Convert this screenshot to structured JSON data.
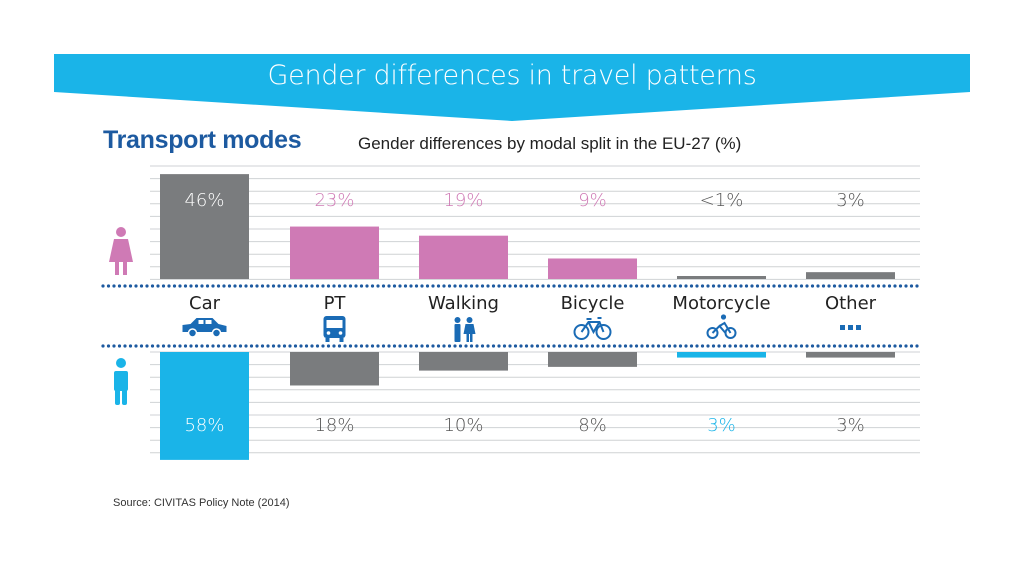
{
  "banner": {
    "title": "Gender differences in travel patterns"
  },
  "heading": "Transport modes",
  "subheading": "Gender differences by modal split in the EU-27 (%)",
  "source": "Source: CIVITAS Policy Note (2014)",
  "colors": {
    "banner": "#1ab4e8",
    "title_blue": "#1d5aa0",
    "female_pink": "#cf7ab5",
    "male_cyan": "#1ab4e8",
    "gray": "#7a7c7e",
    "icon_blue": "#1a6bb5",
    "grid": "#cfd2d4"
  },
  "icons": {
    "female": "female-person-icon",
    "male": "male-person-icon",
    "modes": [
      "car-icon",
      "bus-icon",
      "walking-people-icon",
      "bicycle-icon",
      "motorcycle-icon",
      "ellipsis-icon"
    ]
  },
  "chart_data": {
    "type": "bar",
    "categories": [
      "Car",
      "PT",
      "Walking",
      "Bicycle",
      "Motorcycle",
      "Other"
    ],
    "series": [
      {
        "values": [
          46,
          23,
          19,
          9,
          1,
          3
        ],
        "labels": [
          "46%",
          "23%",
          "19%",
          "9%",
          "<1%",
          "3%"
        ],
        "bar_colors": [
          "#7a7c7e",
          "#cf7ab5",
          "#cf7ab5",
          "#cf7ab5",
          "#7a7c7e",
          "#7a7c7e"
        ],
        "label_colors": [
          "#ffffff",
          "#cf7ab5",
          "#cf7ab5",
          "#cf7ab5",
          "#555555",
          "#555555"
        ]
      },
      {
        "values": [
          58,
          18,
          10,
          8,
          3,
          3
        ],
        "labels": [
          "58%",
          "18%",
          "10%",
          "8%",
          "3%",
          "3%"
        ],
        "bar_colors": [
          "#1ab4e8",
          "#7a7c7e",
          "#7a7c7e",
          "#7a7c7e",
          "#1ab4e8",
          "#7a7c7e"
        ],
        "label_colors": [
          "#ffffff",
          "#555555",
          "#555555",
          "#555555",
          "#1ab4e8",
          "#555555"
        ]
      }
    ],
    "grid": true,
    "legend": "icons-left"
  }
}
